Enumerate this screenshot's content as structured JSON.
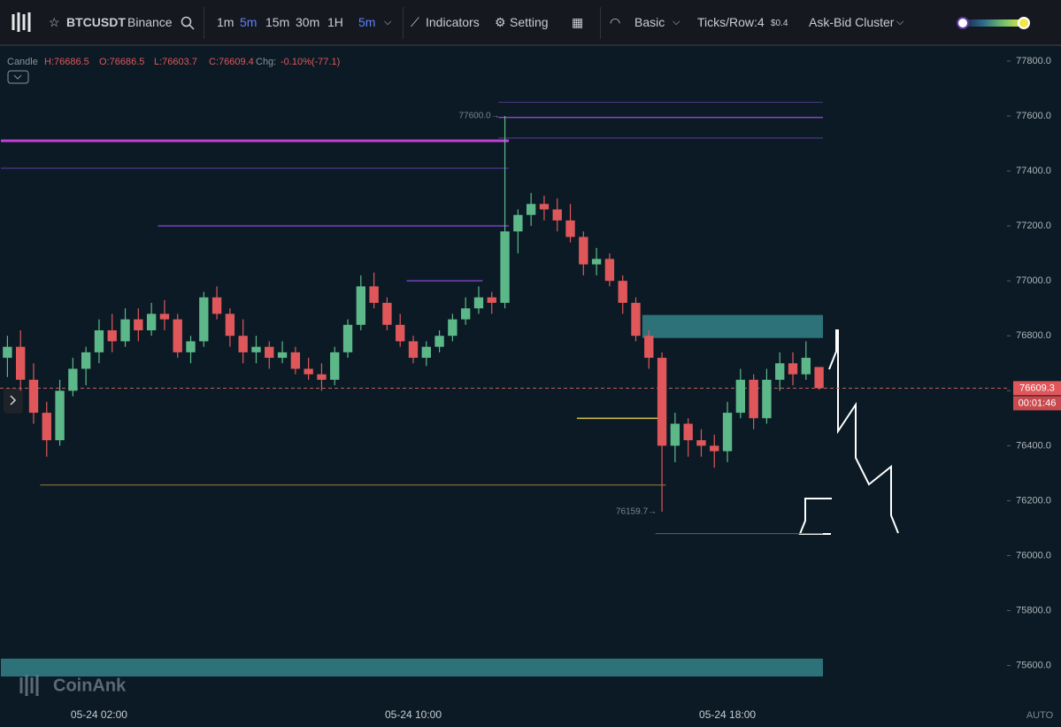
{
  "toolbar": {
    "symbol": "BTCUSDT",
    "exchange": "Binance",
    "intervals": [
      "1m",
      "5m",
      "15m",
      "30m",
      "1H"
    ],
    "active_interval": "5m",
    "indicators": "Indicators",
    "setting": "Setting",
    "mode": "Basic",
    "ticks_row": "Ticks/Row:4",
    "tick_size": "$0.4",
    "cluster": "Ask-Bid Cluster"
  },
  "legend": {
    "kind": "Candle",
    "high": "H:76686.5",
    "open": "O:76686.5",
    "low": "L:76603.7",
    "close": "C:76609.4",
    "chg_label": "Chg:",
    "chg": "-0.10%(-77.1)"
  },
  "watermark": "CoinAnk",
  "scale_mode": "AUTO",
  "chart_data": {
    "type": "candlestick",
    "up_color": "#5db889",
    "down_color": "#e0575b",
    "categories": [
      null,
      null,
      null,
      null,
      null,
      null,
      null,
      "05-24 02:00",
      null,
      null,
      null,
      null,
      null,
      null,
      null,
      null,
      null,
      null,
      null,
      null,
      null,
      null,
      null,
      null,
      null,
      null,
      null,
      null,
      null,
      null,
      null,
      "05-24 10:00",
      null,
      null,
      null,
      null,
      null,
      null,
      null,
      null,
      null,
      null,
      null,
      null,
      null,
      null,
      null,
      null,
      null,
      null,
      null,
      null,
      null,
      null,
      null,
      "05-24 18:00",
      null,
      null,
      null,
      null,
      null,
      null,
      null
    ],
    "ohlc": [
      [
        76720,
        76800,
        76650,
        76760
      ],
      [
        76760,
        76820,
        76600,
        76640
      ],
      [
        76640,
        76700,
        76480,
        76520
      ],
      [
        76520,
        76560,
        76360,
        76420
      ],
      [
        76420,
        76640,
        76400,
        76600
      ],
      [
        76600,
        76720,
        76580,
        76680
      ],
      [
        76680,
        76760,
        76620,
        76740
      ],
      [
        76740,
        76860,
        76700,
        76820
      ],
      [
        76820,
        76880,
        76740,
        76780
      ],
      [
        76780,
        76900,
        76760,
        76860
      ],
      [
        76860,
        76900,
        76780,
        76820
      ],
      [
        76820,
        76920,
        76800,
        76880
      ],
      [
        76880,
        76930,
        76820,
        76860
      ],
      [
        76860,
        76880,
        76720,
        76740
      ],
      [
        76740,
        76800,
        76700,
        76780
      ],
      [
        76780,
        76960,
        76760,
        76940
      ],
      [
        76940,
        76980,
        76860,
        76880
      ],
      [
        76880,
        76900,
        76760,
        76800
      ],
      [
        76800,
        76860,
        76700,
        76740
      ],
      [
        76740,
        76800,
        76700,
        76760
      ],
      [
        76760,
        76780,
        76680,
        76720
      ],
      [
        76720,
        76780,
        76700,
        76740
      ],
      [
        76740,
        76760,
        76660,
        76680
      ],
      [
        76680,
        76720,
        76640,
        76660
      ],
      [
        76660,
        76700,
        76600,
        76640
      ],
      [
        76640,
        76760,
        76620,
        76740
      ],
      [
        76740,
        76860,
        76720,
        76840
      ],
      [
        76840,
        77020,
        76820,
        76980
      ],
      [
        76980,
        77030,
        76900,
        76920
      ],
      [
        76920,
        76940,
        76820,
        76840
      ],
      [
        76840,
        76880,
        76760,
        76780
      ],
      [
        76780,
        76800,
        76700,
        76720
      ],
      [
        76720,
        76780,
        76690,
        76760
      ],
      [
        76760,
        76820,
        76740,
        76800
      ],
      [
        76800,
        76880,
        76780,
        76860
      ],
      [
        76860,
        76940,
        76840,
        76900
      ],
      [
        76900,
        76980,
        76880,
        76940
      ],
      [
        76940,
        76960,
        76880,
        76920
      ],
      [
        76920,
        77600,
        76900,
        77180
      ],
      [
        77180,
        77260,
        77100,
        77240
      ],
      [
        77240,
        77320,
        77200,
        77280
      ],
      [
        77280,
        77310,
        77220,
        77260
      ],
      [
        77260,
        77300,
        77180,
        77220
      ],
      [
        77220,
        77280,
        77140,
        77160
      ],
      [
        77160,
        77180,
        77020,
        77060
      ],
      [
        77060,
        77120,
        77020,
        77080
      ],
      [
        77080,
        77100,
        76980,
        77000
      ],
      [
        77000,
        77020,
        76880,
        76920
      ],
      [
        76920,
        76940,
        76780,
        76800
      ],
      [
        76800,
        76820,
        76680,
        76720
      ],
      [
        76720,
        76740,
        76159.7,
        76400
      ],
      [
        76400,
        76520,
        76340,
        76480
      ],
      [
        76480,
        76500,
        76360,
        76420
      ],
      [
        76420,
        76460,
        76360,
        76400
      ],
      [
        76400,
        76440,
        76320,
        76380
      ],
      [
        76380,
        76560,
        76340,
        76520
      ],
      [
        76520,
        76680,
        76500,
        76640
      ],
      [
        76640,
        76660,
        76460,
        76500
      ],
      [
        76500,
        76680,
        76480,
        76640
      ],
      [
        76640,
        76740,
        76600,
        76700
      ],
      [
        76700,
        76740,
        76620,
        76660
      ],
      [
        76660,
        76780,
        76640,
        76720
      ],
      [
        76686.5,
        76686.5,
        76603.7,
        76609.4
      ]
    ],
    "ylim": [
      75460,
      77845
    ],
    "yticks": [
      {
        "value": 75600,
        "label": "75600.0"
      },
      {
        "value": 75800,
        "label": "75800.0"
      },
      {
        "value": 76000,
        "label": "76000.0"
      },
      {
        "value": 76200,
        "label": "76200.0"
      },
      {
        "value": 76400,
        "label": "76400.0"
      },
      {
        "value": 76600,
        "label": "76600.0"
      },
      {
        "value": 76800,
        "label": "76800.0"
      },
      {
        "value": 77000,
        "label": "77000.0"
      },
      {
        "value": 77200,
        "label": "77200.0"
      },
      {
        "value": 77400,
        "label": "77400.0"
      },
      {
        "value": 77600,
        "label": "77600.0"
      },
      {
        "value": 77800,
        "label": "77800.0"
      }
    ],
    "levels": [
      {
        "value": 77510,
        "color": "#c23fd6",
        "start": 0,
        "end": 38,
        "width": 3
      },
      {
        "value": 77410,
        "color": "#6a3aa8",
        "start": 0,
        "end": 38,
        "width": 1
      },
      {
        "value": 77200,
        "color": "#7a40c0",
        "start": 12,
        "end": 38,
        "width": 1.5
      },
      {
        "value": 77000,
        "color": "#7a40c0",
        "start": 31,
        "end": 36,
        "width": 1.5
      },
      {
        "value": 77595,
        "color": "#8a44cc",
        "start": 38,
        "end": 62,
        "width": 1.5
      },
      {
        "value": 77520,
        "color": "#5c3a9a",
        "start": 38,
        "end": 62,
        "width": 1
      },
      {
        "value": 77650,
        "color": "#4a3a80",
        "start": 38,
        "end": 62,
        "width": 1
      },
      {
        "value": 76500,
        "color": "#d8c24a",
        "start": 44,
        "end": 50,
        "width": 1.5
      },
      {
        "value": 76257,
        "color": "#9c7c40",
        "start": 3,
        "end": 50,
        "width": 1
      },
      {
        "value": 76080,
        "color": "#5a6a40",
        "start": 50,
        "end": 62,
        "width": 1
      }
    ],
    "zones": [
      {
        "low": 76792,
        "high": 76876,
        "start": 49,
        "end": 62,
        "color": "#3a8f95"
      },
      {
        "low": 75560,
        "high": 75625,
        "start": 0,
        "end": 62,
        "color": "#3a8f95"
      }
    ],
    "annotations": [
      {
        "value": 77600,
        "label": "77600.0→",
        "index": 38
      },
      {
        "value": 76159.7,
        "label": "76159.7→",
        "index": 50
      }
    ],
    "last_price": {
      "value": 76609.3,
      "label": "76609.3",
      "countdown": "00:01:46"
    }
  }
}
